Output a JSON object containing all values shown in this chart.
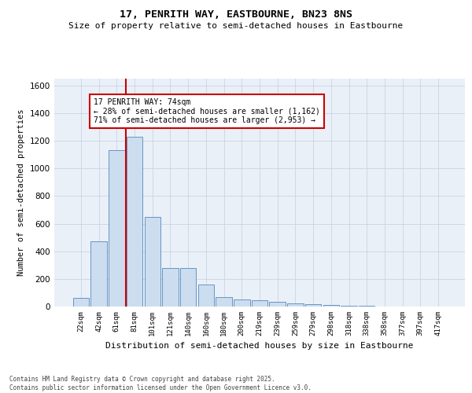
{
  "title1": "17, PENRITH WAY, EASTBOURNE, BN23 8NS",
  "title2": "Size of property relative to semi-detached houses in Eastbourne",
  "xlabel": "Distribution of semi-detached houses by size in Eastbourne",
  "ylabel": "Number of semi-detached properties",
  "footnote": "Contains HM Land Registry data © Crown copyright and database right 2025.\nContains public sector information licensed under the Open Government Licence v3.0.",
  "bins": [
    "22sqm",
    "42sqm",
    "61sqm",
    "81sqm",
    "101sqm",
    "121sqm",
    "140sqm",
    "160sqm",
    "180sqm",
    "200sqm",
    "219sqm",
    "239sqm",
    "259sqm",
    "279sqm",
    "298sqm",
    "318sqm",
    "338sqm",
    "358sqm",
    "377sqm",
    "397sqm",
    "417sqm"
  ],
  "values": [
    60,
    470,
    1130,
    1230,
    650,
    280,
    280,
    160,
    70,
    50,
    45,
    35,
    25,
    15,
    10,
    5,
    3,
    2,
    1,
    1,
    0
  ],
  "bar_color": "#ccddf0",
  "bar_edge_color": "#5588bb",
  "vline_color": "#cc0000",
  "annotation_title": "17 PENRITH WAY: 74sqm",
  "annotation_line1": "← 28% of semi-detached houses are smaller (1,162)",
  "annotation_line2": "71% of semi-detached houses are larger (2,953) →",
  "annotation_box_color": "#cc0000",
  "ylim": [
    0,
    1650
  ],
  "yticks": [
    0,
    200,
    400,
    600,
    800,
    1000,
    1200,
    1400,
    1600
  ],
  "grid_color": "#c8d4e4",
  "bg_color": "#eaf0f8"
}
